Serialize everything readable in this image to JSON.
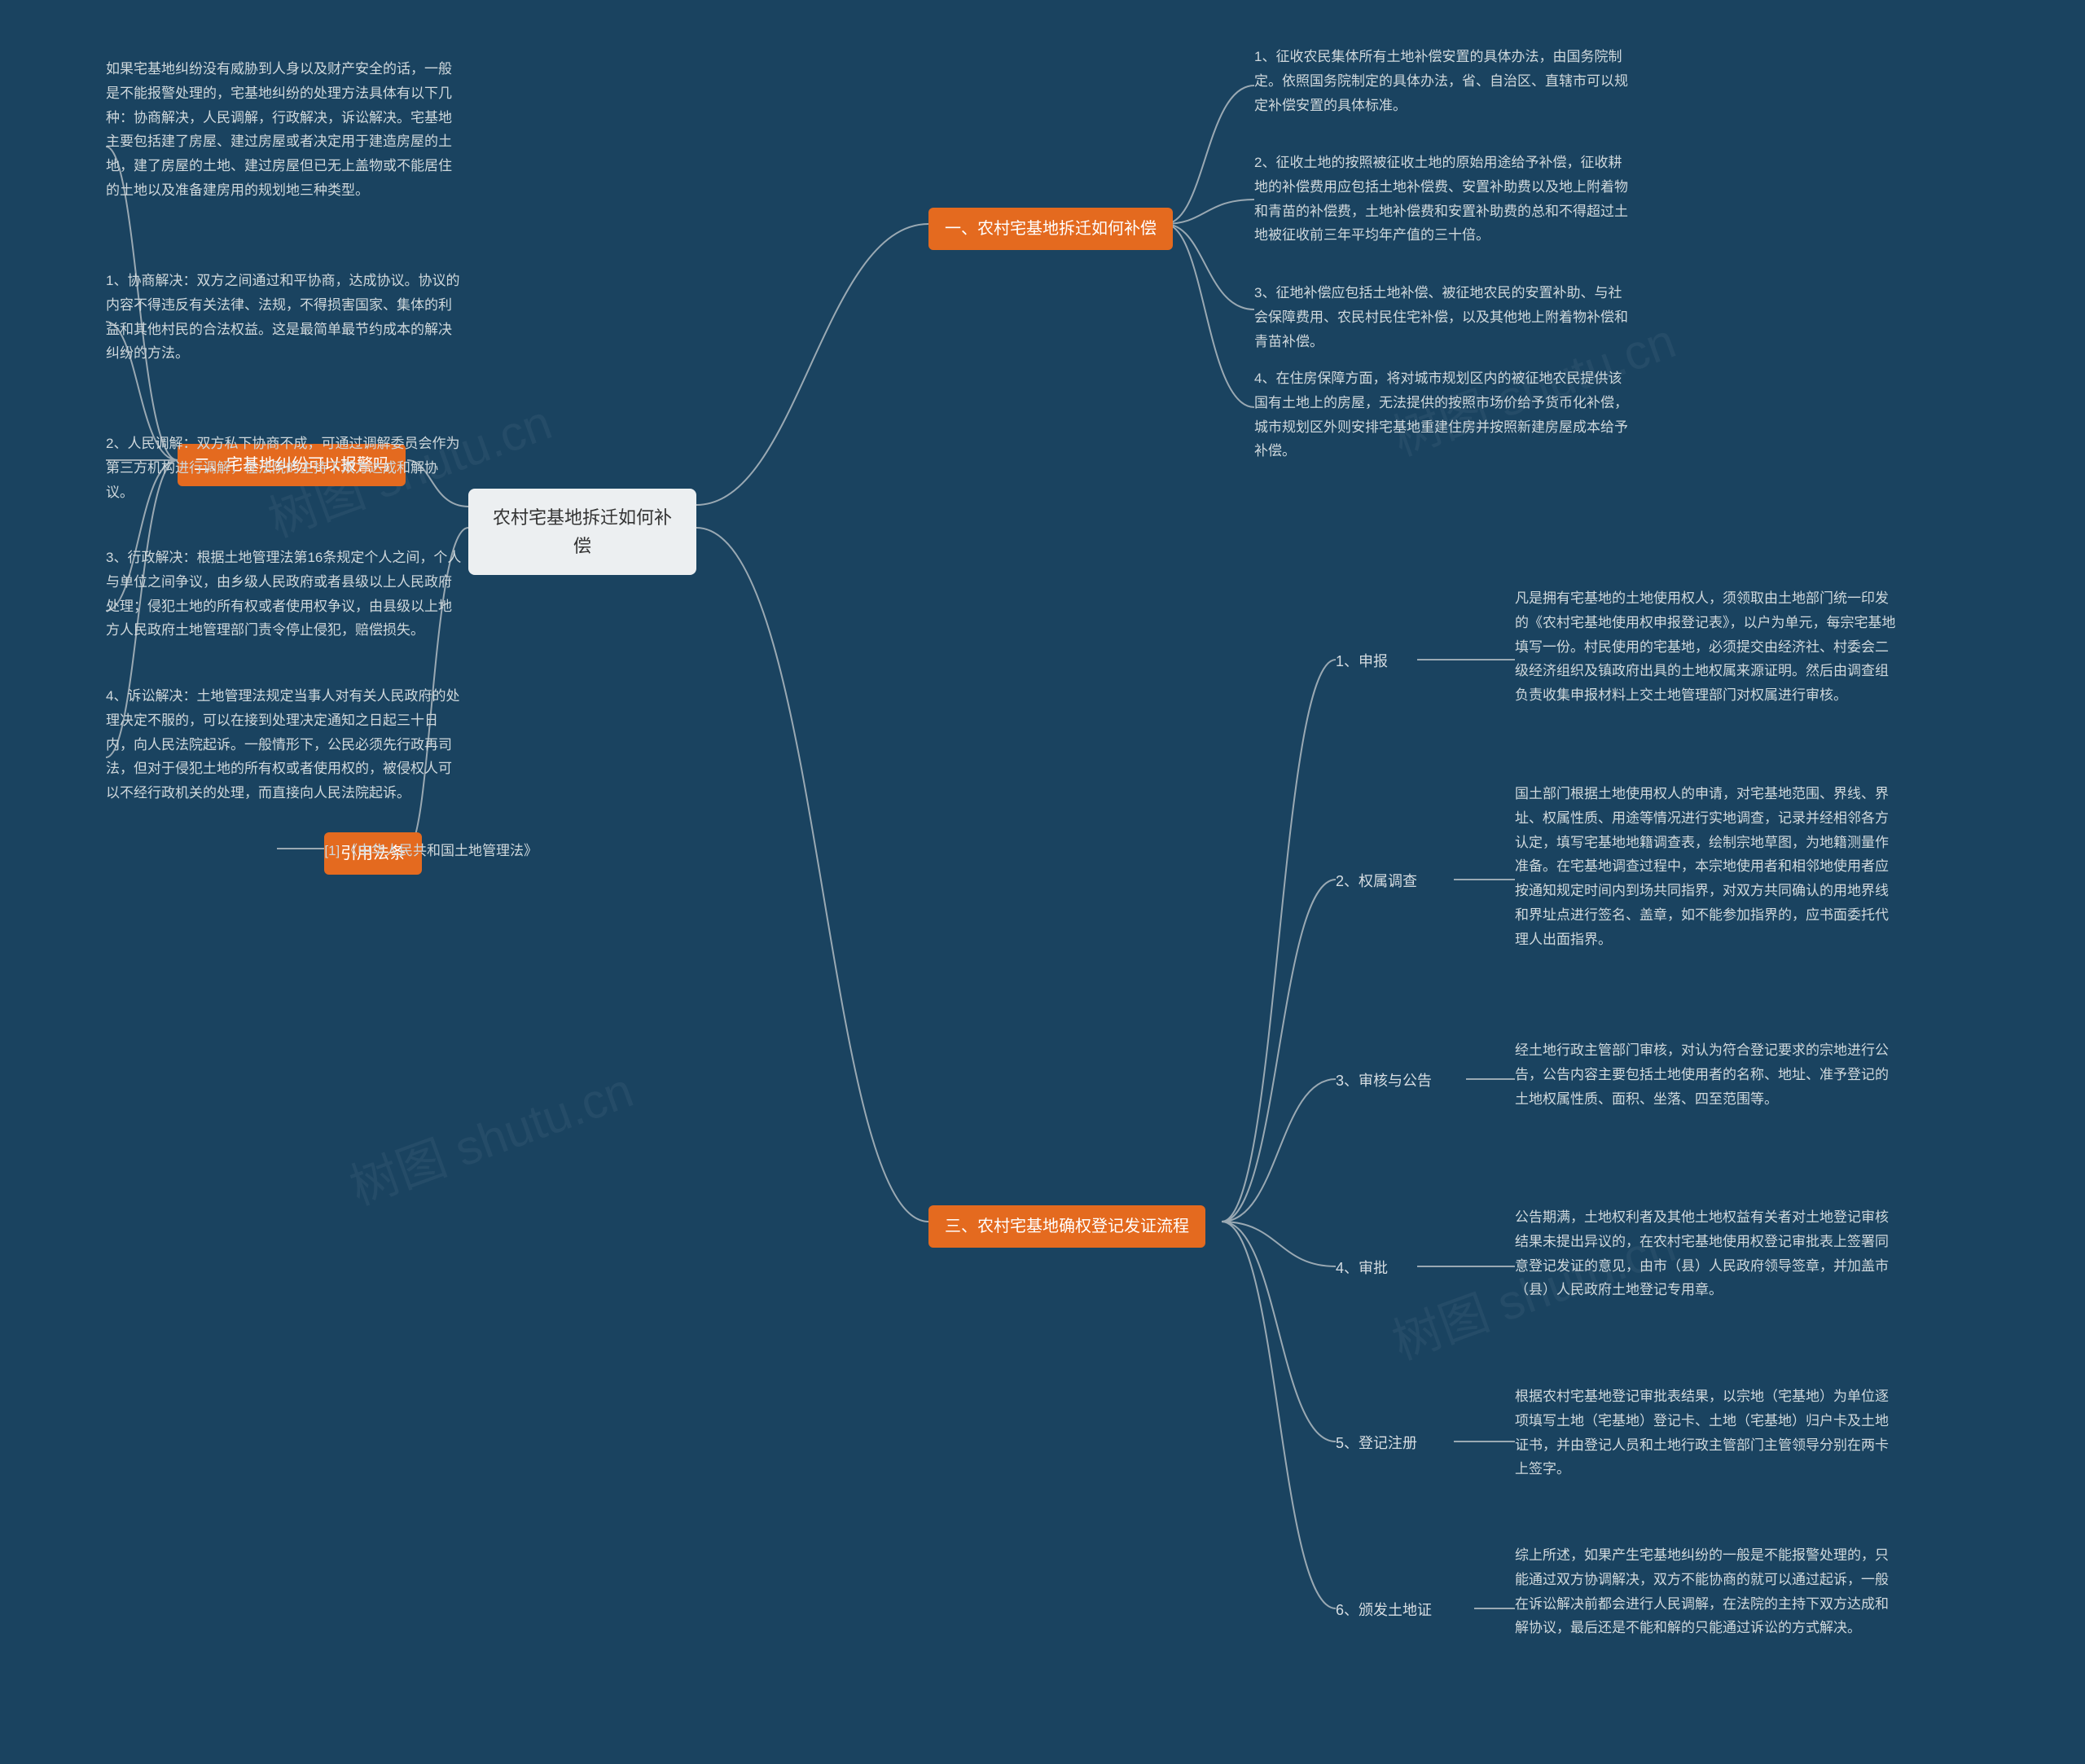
{
  "colors": {
    "background": "#1a4360",
    "root_bg": "#eceff1",
    "root_text": "#333333",
    "branch_bg": "#e46a1f",
    "branch_text": "#ffffff",
    "leaf_text": "#cfd8dc",
    "connector": "#9aa9b3"
  },
  "root": {
    "label": "农村宅基地拆迁如何补偿"
  },
  "branches": {
    "b1": {
      "label": "一、农村宅基地拆迁如何补偿"
    },
    "b2": {
      "label": "二、宅基地纠纷可以报警吗"
    },
    "b3": {
      "label": "三、农村宅基地确权登记发证流程"
    },
    "b4": {
      "label": "引用法条"
    }
  },
  "b1_leaves": {
    "l1": "1、征收农民集体所有土地补偿安置的具体办法，由国务院制定。依照国务院制定的具体办法，省、自治区、直辖市可以规定补偿安置的具体标准。",
    "l2": "2、征收土地的按照被征收土地的原始用途给予补偿，征收耕地的补偿费用应包括土地补偿费、安置补助费以及地上附着物和青苗的补偿费，土地补偿费和安置补助费的总和不得超过土地被征收前三年平均年产值的三十倍。",
    "l3": "3、征地补偿应包括土地补偿、被征地农民的安置补助、与社会保障费用、农民村民住宅补偿，以及其他地上附着物补偿和青苗补偿。",
    "l4": "4、在住房保障方面，将对城市规划区内的被征地农民提供该国有土地上的房屋，无法提供的按照市场价给予货币化补偿，城市规划区外则安排宅基地重建住房并按照新建房屋成本给予补偿。"
  },
  "b2_leaves": {
    "l0": "如果宅基地纠纷没有威胁到人身以及财产安全的话，一般是不能报警处理的，宅基地纠纷的处理方法具体有以下几种：协商解决，人民调解，行政解决，诉讼解决。宅基地主要包括建了房屋、建过房屋或者决定用于建造房屋的土地，建了房屋的土地、建过房屋但已无上盖物或不能居住的土地以及准备建房用的规划地三种类型。",
    "l1": "1、协商解决：双方之间通过和平协商，达成协议。协议的内容不得违反有关法律、法规，不得损害国家、集体的利益和其他村民的合法权益。这是最简单最节约成本的解决纠纷的方法。",
    "l2": "2、人民调解：双方私下协商不成，可通过调解委员会作为第三方机构进行调解，在法院的主持下双方达成和解协议。",
    "l3": "3、行政解决：根据土地管理法第16条规定个人之间，个人与单位之间争议，由乡级人民政府或者县级以上人民政府处理；侵犯土地的所有权或者使用权争议，由县级以上地方人民政府土地管理部门责令停止侵犯，赔偿损失。",
    "l4": "4、诉讼解决：土地管理法规定当事人对有关人民政府的处理决定不服的，可以在接到处理决定通知之日起三十日内，向人民法院起诉。一般情形下，公民必须先行政再司法，但对于侵犯土地的所有权或者使用权的，被侵权人可以不经行政机关的处理，而直接向人民法院起诉。"
  },
  "b3_items": {
    "i1": {
      "label": "1、申报",
      "text": "凡是拥有宅基地的土地使用权人，须领取由土地部门统一印发的《农村宅基地使用权申报登记表》，以户为单元，每宗宅基地填写一份。村民使用的宅基地，必须提交由经济社、村委会二级经济组织及镇政府出具的土地权属来源证明。然后由调查组负责收集申报材料上交土地管理部门对权属进行审核。"
    },
    "i2": {
      "label": "2、权属调查",
      "text": "国土部门根据土地使用权人的申请，对宅基地范围、界线、界址、权属性质、用途等情况进行实地调查，记录并经相邻各方认定，填写宅基地地籍调查表，绘制宗地草图，为地籍测量作准备。在宅基地调查过程中，本宗地使用者和相邻地使用者应按通知规定时间内到场共同指界，对双方共同确认的用地界线和界址点进行签名、盖章，如不能参加指界的，应书面委托代理人出面指界。"
    },
    "i3": {
      "label": "3、审核与公告",
      "text": "经土地行政主管部门审核，对认为符合登记要求的宗地进行公告，公告内容主要包括土地使用者的名称、地址、准予登记的土地权属性质、面积、坐落、四至范围等。"
    },
    "i4": {
      "label": "4、审批",
      "text": "公告期满，土地权利者及其他土地权益有关者对土地登记审核结果未提出异议的，在农村宅基地使用权登记审批表上签署同意登记发证的意见，由市（县）人民政府领导签章，并加盖市（县）人民政府土地登记专用章。"
    },
    "i5": {
      "label": "5、登记注册",
      "text": "根据农村宅基地登记审批表结果，以宗地（宅基地）为单位逐项填写土地（宅基地）登记卡、土地（宅基地）归户卡及土地证书，并由登记人员和土地行政主管部门主管领导分别在两卡上签字。"
    },
    "i6": {
      "label": "6、颁发土地证",
      "text": "综上所述，如果产生宅基地纠纷的一般是不能报警处理的，只能通过双方协调解决，双方不能协商的就可以通过起诉，一般在诉讼解决前都会进行人民调解，在法院的主持下双方达成和解协议，最后还是不能和解的只能通过诉讼的方式解决。"
    }
  },
  "b4_leaf": "[1] 《中华人民共和国土地管理法》",
  "watermark": "树图 shutu.cn"
}
